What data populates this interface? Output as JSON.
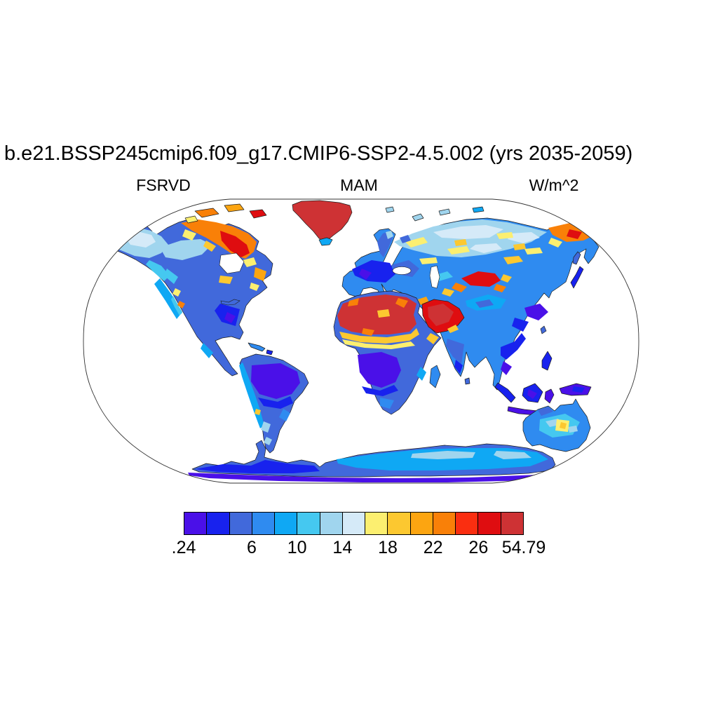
{
  "header": {
    "title": "b.e21.BSSP245cmip6.f09_g17.CMIP6-SSP2-4.5.002 (yrs 2035-2059)",
    "left_subtitle": "FSRVD",
    "center_subtitle": "MAM",
    "right_subtitle": "W/m^2"
  },
  "colorbar": {
    "colors": [
      "#4A10E8",
      "#1822EE",
      "#4169DB",
      "#2F8BF0",
      "#0FA8F4",
      "#45C8F0",
      "#A0D5EE",
      "#D5EAF8",
      "#FCEF70",
      "#FCC830",
      "#FCA511",
      "#F98008",
      "#FA2E10",
      "#DF0D10",
      "#CE3234"
    ],
    "cell_border": "#000000",
    "segment_count": 15,
    "ticks": [
      {
        "label": ".24",
        "index": 0
      },
      {
        "label": "6",
        "index": 3
      },
      {
        "label": "10",
        "index": 5
      },
      {
        "label": "14",
        "index": 7
      },
      {
        "label": "18",
        "index": 9
      },
      {
        "label": "22",
        "index": 11
      },
      {
        "label": "26",
        "index": 13
      },
      {
        "label": "54.79",
        "index": 15
      }
    ]
  },
  "chart_data": {
    "type": "heatmap",
    "subtype": "filled-contour world map, land-only field",
    "projection": "Robinson",
    "title": "b.e21.BSSP245cmip6.f09_g17.CMIP6-SSP2-4.5.002 (yrs 2035-2059)",
    "variable": "FSRVD",
    "season": "MAM",
    "units": "W/m^2",
    "data_min": 0.24,
    "data_max": 54.79,
    "contour_levels": [
      2,
      4,
      6,
      8,
      10,
      12,
      14,
      16,
      18,
      20,
      22,
      24,
      26,
      28
    ],
    "colorbar_tick_labels": [
      ".24",
      "6",
      "10",
      "14",
      "18",
      "22",
      "26",
      "54.79"
    ],
    "legend_position": "bottom horizontal colorbar",
    "ocean_mask": "white (oceans and large lakes blank)",
    "region_readings": [
      {
        "region": "Greenland",
        "value_wm2": "above 28, near maximum (solid dark red)"
      },
      {
        "region": "Sahara Desert",
        "value_wm2": "26 to 54.79 (dark red with orange/gold speckles)"
      },
      {
        "region": "Arabian Peninsula",
        "value_wm2": "24 to 54 (red / dark red)"
      },
      {
        "region": "Canadian Arctic Archipelago and Hudson Bay rim",
        "value_wm2": "16 to 28 (yellow-orange-red)"
      },
      {
        "region": "Northeast Siberia (Chukotka)",
        "value_wm2": "18 to 28 (orange/red)"
      },
      {
        "region": "Tarim Basin / Central Asian deserts",
        "value_wm2": "24 to 28 (red patch)"
      },
      {
        "region": "Sahel transition band",
        "value_wm2": "16 to 22 (yellow-gold band)"
      },
      {
        "region": "Iran / Middle East fringe",
        "value_wm2": "14 to 22 (yellow-gold patches)"
      },
      {
        "region": "Amazon Basin",
        "value_wm2": "below 4 (violet)"
      },
      {
        "region": "Congo Basin",
        "value_wm2": "below 4 (violet)"
      },
      {
        "region": "Maritime Continent (Indonesia, New Guinea)",
        "value_wm2": "below 4 (violet/deep blue)"
      },
      {
        "region": "Western Europe",
        "value_wm2": "2 to 8 (deep blue)"
      },
      {
        "region": "Siberia interior",
        "value_wm2": "10 to 16 pale blues with 16 to 20 yellow streaks"
      },
      {
        "region": "Western North America",
        "value_wm2": "8 to 14 (sky / light blue)"
      },
      {
        "region": "Eastern United States",
        "value_wm2": "2 to 8 (deep blue)"
      },
      {
        "region": "India and Southeast Asia",
        "value_wm2": "2 to 8 (blue)"
      },
      {
        "region": "Australia",
        "value_wm2": "4 to 12, small 18 to 20 yellow spot in interior"
      },
      {
        "region": "Antarctica",
        "value_wm2": "2 to 14; lighter 10 to 14 over East Antarctica, below 2 strip at map edge"
      },
      {
        "region": "Oceans",
        "value_wm2": "masked (white)"
      }
    ]
  }
}
